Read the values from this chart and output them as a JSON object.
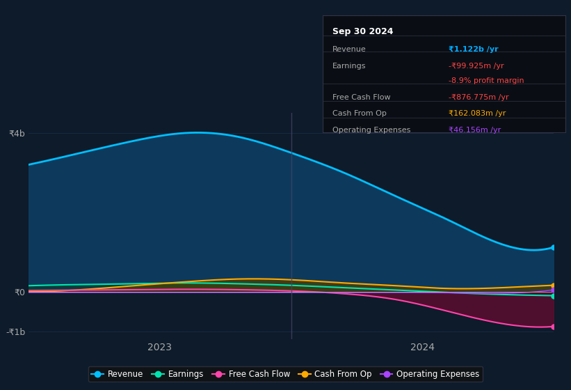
{
  "background_color": "#0d1b2a",
  "plot_bg_color": "#0d1b2a",
  "title": "Sep 30 2024",
  "info_box": {
    "rows": [
      {
        "label": "Revenue",
        "value": "₹1.122b /yr",
        "value_color": "#00aaff"
      },
      {
        "label": "Earnings",
        "value": "-₹99.925m /yr",
        "value_color": "#ff4444"
      },
      {
        "label": "",
        "value": "-8.9% profit margin",
        "value_color": "#ff4444"
      },
      {
        "label": "Free Cash Flow",
        "value": "-₹876.775m /yr",
        "value_color": "#ff4444"
      },
      {
        "label": "Cash From Op",
        "value": "₹162.083m /yr",
        "value_color": "#ffaa00"
      },
      {
        "label": "Operating Expenses",
        "value": "₹46.156m /yr",
        "value_color": "#aa44ff"
      }
    ]
  },
  "ylim": [
    -1200000000.0,
    4500000000.0
  ],
  "yticks": [
    -1000000000.0,
    0,
    4000000000.0
  ],
  "ytick_labels": [
    "-₹1b",
    "₹0",
    "₹4b"
  ],
  "series": {
    "revenue": {
      "color": "#00bfff",
      "fill_color": "#0d3a5c",
      "label": "Revenue",
      "values": [
        3200000000.0,
        3500000000.0,
        3800000000.0,
        4000000000.0,
        3900000000.0,
        3500000000.0,
        3000000000.0,
        2400000000.0,
        1800000000.0,
        1200000000.0,
        1122000000.0
      ]
    },
    "earnings": {
      "color": "#00e5b0",
      "fill_color": "#004030",
      "label": "Earnings",
      "values": [
        150000000.0,
        180000000.0,
        200000000.0,
        220000000.0,
        200000000.0,
        160000000.0,
        100000000.0,
        40000000.0,
        -20000000.0,
        -70000000.0,
        -100000000.0
      ]
    },
    "free_cash_flow": {
      "color": "#ff44aa",
      "fill_color": "#6b0a30",
      "label": "Free Cash Flow",
      "values": [
        30000000.0,
        40000000.0,
        50000000.0,
        60000000.0,
        50000000.0,
        20000000.0,
        -50000000.0,
        -200000000.0,
        -500000000.0,
        -800000000.0,
        -877000000.0
      ]
    },
    "cash_from_op": {
      "color": "#ffaa00",
      "fill_color": "#504000",
      "label": "Cash From Op",
      "values": [
        0.0,
        50000000.0,
        150000000.0,
        250000000.0,
        320000000.0,
        300000000.0,
        220000000.0,
        150000000.0,
        80000000.0,
        100000000.0,
        162000000.0
      ]
    },
    "operating_expenses": {
      "color": "#aa44ff",
      "fill_color": "#301060",
      "label": "Operating Expenses",
      "values": [
        -20000000.0,
        -20000000.0,
        -20000000.0,
        -20000000.0,
        -20000000.0,
        -20000000.0,
        -20000000.0,
        -20000000.0,
        -30000000.0,
        -40000000.0,
        46000000.0
      ]
    }
  },
  "x_values": [
    0.0,
    0.1,
    0.2,
    0.3,
    0.4,
    0.5,
    0.6,
    0.7,
    0.8,
    0.9,
    1.0
  ]
}
